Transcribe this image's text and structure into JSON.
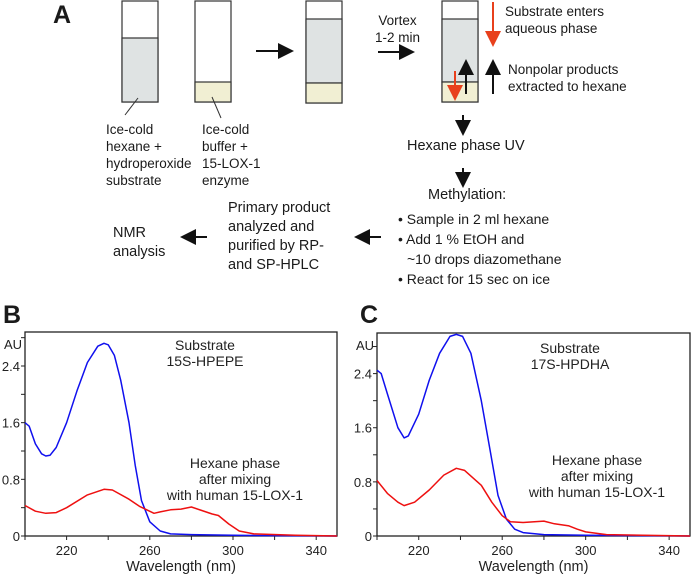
{
  "panel_a": {
    "label": "A",
    "tube1_label": [
      "Ice-cold",
      "hexane +",
      "hydroperoxide",
      "substrate"
    ],
    "tube2_label": [
      "Ice-cold",
      "buffer +",
      "15-LOX-1",
      "enzyme"
    ],
    "vortex": [
      "Vortex",
      "1-2 min"
    ],
    "substrate_note": [
      "Substrate enters",
      "aqueous phase"
    ],
    "products_note": [
      "Nonpolar products",
      "extracted to hexane"
    ],
    "hexane_uv": "Hexane phase UV",
    "methylation_title": "Methylation:",
    "methylation_steps": [
      "Sample in 2 ml hexane",
      "Add 1 % EtOH and",
      "~10 drops diazomethane",
      "React for 15 sec on ice"
    ],
    "primary_product": [
      "Primary product",
      "analyzed and",
      "purified by RP-",
      "and SP-HPLC"
    ],
    "nmr": [
      "NMR",
      "analysis"
    ],
    "colors": {
      "hexane": "#dfe3e3",
      "buffer": "#f1efd3",
      "red_arrow": "#e8401c"
    }
  },
  "chart_data": [
    {
      "panel": "B",
      "type": "line",
      "xlabel": "Wavelength (nm)",
      "ylabel": "AU",
      "xlim": [
        200,
        350
      ],
      "ylim": [
        0,
        2.88
      ],
      "xticks": [
        220,
        260,
        300,
        340
      ],
      "yticks": [
        0,
        0.8,
        1.6,
        2.4
      ],
      "series": [
        {
          "name": "Substrate 15S-HPEPE",
          "label": [
            "Substrate",
            "15S-HPEPE"
          ],
          "color": "#1010ee",
          "x": [
            200,
            202,
            205,
            208,
            210,
            212,
            215,
            220,
            225,
            230,
            235,
            238,
            240,
            243,
            246,
            250,
            253,
            256,
            260,
            265,
            270,
            280,
            300,
            350
          ],
          "y": [
            1.6,
            1.55,
            1.3,
            1.16,
            1.13,
            1.14,
            1.25,
            1.6,
            2.05,
            2.45,
            2.68,
            2.72,
            2.7,
            2.55,
            2.2,
            1.6,
            1.0,
            0.5,
            0.2,
            0.07,
            0.03,
            0.02,
            0.01,
            0
          ]
        },
        {
          "name": "Hexane phase after mixing with human 15-LOX-1",
          "label": [
            "Hexane phase",
            "after mixing",
            "with human 15-LOX-1"
          ],
          "color": "#ee1010",
          "x": [
            200,
            205,
            210,
            215,
            220,
            230,
            238,
            242,
            250,
            255,
            262,
            265,
            270,
            275,
            280,
            285,
            290,
            293,
            298,
            303,
            310,
            330,
            350
          ],
          "y": [
            0.43,
            0.35,
            0.32,
            0.33,
            0.4,
            0.58,
            0.66,
            0.65,
            0.52,
            0.42,
            0.32,
            0.34,
            0.37,
            0.38,
            0.41,
            0.36,
            0.31,
            0.29,
            0.17,
            0.07,
            0.03,
            0.01,
            0
          ]
        }
      ]
    },
    {
      "panel": "C",
      "type": "line",
      "xlabel": "Wavelength (nm)",
      "ylabel": "AU",
      "xlim": [
        200,
        350
      ],
      "ylim": [
        0,
        3.0
      ],
      "xticks": [
        220,
        260,
        300,
        340
      ],
      "yticks": [
        0,
        0.8,
        1.6,
        2.4
      ],
      "series": [
        {
          "name": "Substrate 17S-HPDHA",
          "label": [
            "Substrate",
            "17S-HPDHA"
          ],
          "color": "#1010ee",
          "x": [
            200,
            202,
            205,
            210,
            213,
            215,
            220,
            225,
            230,
            235,
            238,
            241,
            245,
            250,
            254,
            258,
            262,
            266,
            270,
            280,
            300,
            350
          ],
          "y": [
            2.45,
            2.4,
            2.1,
            1.6,
            1.45,
            1.48,
            1.8,
            2.3,
            2.7,
            2.95,
            2.98,
            2.95,
            2.7,
            2.0,
            1.3,
            0.6,
            0.25,
            0.1,
            0.05,
            0.02,
            0.01,
            0
          ]
        },
        {
          "name": "Hexane phase after mixing with human 15-LOX-1",
          "label": [
            "Hexane phase",
            "after mixing",
            "with human 15-LOX-1"
          ],
          "color": "#ee1010",
          "x": [
            200,
            205,
            210,
            213,
            218,
            225,
            232,
            238,
            242,
            250,
            255,
            260,
            264,
            270,
            280,
            285,
            292,
            296,
            300,
            310,
            350
          ],
          "y": [
            0.82,
            0.63,
            0.5,
            0.45,
            0.5,
            0.68,
            0.9,
            1.0,
            0.97,
            0.75,
            0.5,
            0.3,
            0.21,
            0.2,
            0.22,
            0.18,
            0.15,
            0.1,
            0.06,
            0.02,
            0
          ]
        }
      ]
    }
  ]
}
